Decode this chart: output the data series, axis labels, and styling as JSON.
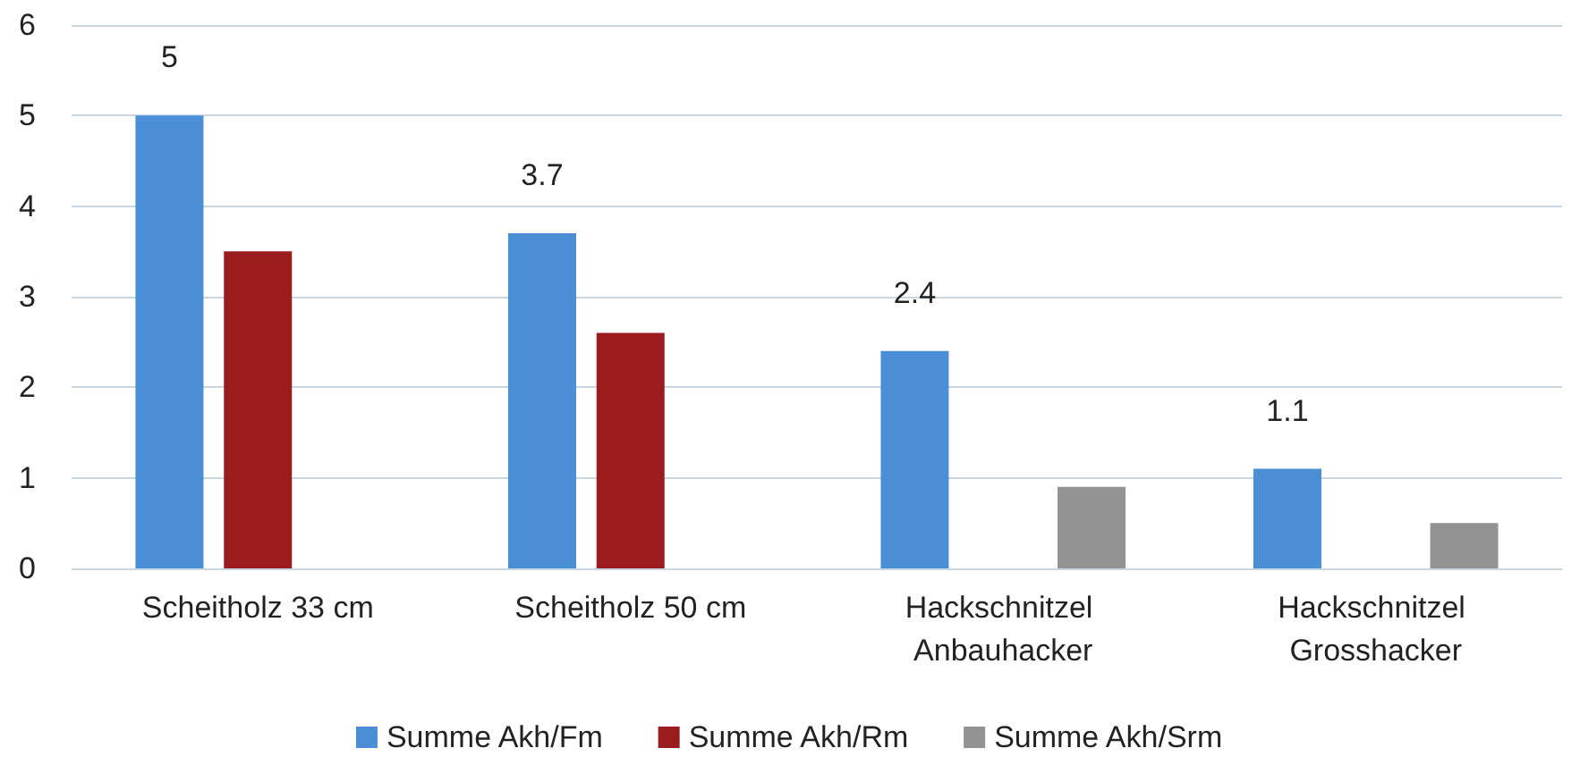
{
  "chart_data": {
    "type": "bar",
    "categories": [
      "Scheitholz 33 cm",
      "Scheitholz 50 cm",
      "Hackschnitzel Anbauhacker",
      "Hackschnitzel Grosshacker"
    ],
    "series": [
      {
        "name": "Summe Akh/Fm",
        "color": "#4a8fd6",
        "values": [
          5,
          3.7,
          2.4,
          1.1
        ],
        "value_labels": [
          "5",
          "3.7",
          "2.4",
          "1.1"
        ]
      },
      {
        "name": "Summe Akh/Rm",
        "color": "#9b1c1f",
        "values": [
          3.5,
          2.6,
          null,
          null
        ]
      },
      {
        "name": "Summe Akh/Srm",
        "color": "#939393",
        "values": [
          null,
          null,
          0.9,
          0.5
        ]
      }
    ],
    "ylim": [
      0,
      6
    ],
    "yticks": [
      0,
      1,
      2,
      3,
      4,
      5,
      6
    ],
    "grid": "y",
    "legend": "bottom"
  }
}
